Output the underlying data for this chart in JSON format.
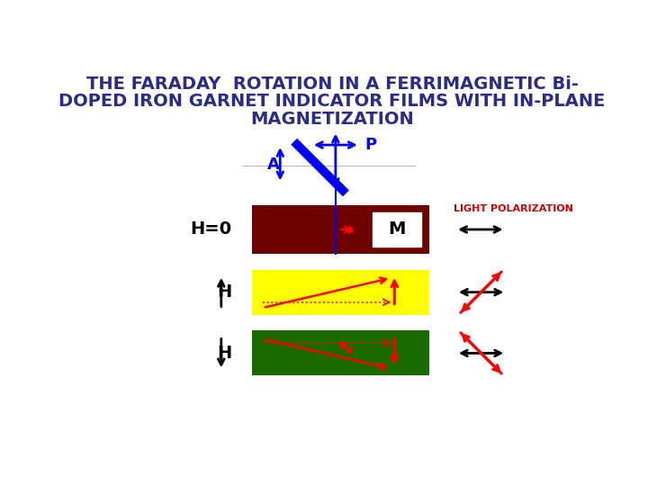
{
  "title_line1": "THE FARADAY  ROTATION IN A FERRIMAGNETIC Bi-",
  "title_line2": "DOPED IRON GARNET INDICATOR FILMS WITH IN-PLANE",
  "title_line3": "MAGNETIZATION",
  "title_color": "#2b2b8a",
  "title_fontsize": 14,
  "bg_color": "#ffffff",
  "rect1_color": "#6e0000",
  "rect2_color": "#ffff00",
  "rect3_color": "#1a6b00",
  "light_pol_color": "#cc0000",
  "light_pol_fontsize": 8
}
